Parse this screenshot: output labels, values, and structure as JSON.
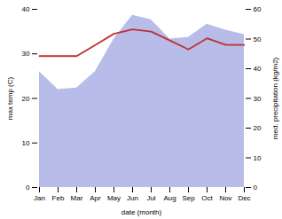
{
  "chart_data": {
    "type": "line",
    "categories": [
      "Jan",
      "Feb",
      "Mar",
      "Apr",
      "May",
      "Jun",
      "Jul",
      "Aug",
      "Sep",
      "Oct",
      "Nov",
      "Dec"
    ],
    "series": [
      {
        "type": "area",
        "axis": "y2",
        "color": "#b8bce8",
        "values": [
          39.0,
          33.0,
          33.5,
          39.0,
          50.0,
          58.0,
          56.5,
          50.0,
          50.5,
          55.0,
          53.0,
          51.5
        ]
      },
      {
        "type": "line",
        "color": "#c03030",
        "values": [
          29.5,
          29.5,
          29.5,
          32.0,
          34.5,
          35.5,
          35.0,
          33.0,
          31.0,
          33.5,
          32.0,
          32.0
        ]
      }
    ],
    "xlabel": "date (month)",
    "ylabel": "max temp (C)",
    "y2label": "med. precipitation (kg/m2)",
    "ylim": [
      0,
      40
    ],
    "yticks": [
      0,
      10,
      20,
      30,
      40
    ],
    "y2lim": [
      0,
      60
    ],
    "y2ticks": [
      0,
      10,
      20,
      30,
      40,
      50,
      60
    ],
    "grid": false
  }
}
